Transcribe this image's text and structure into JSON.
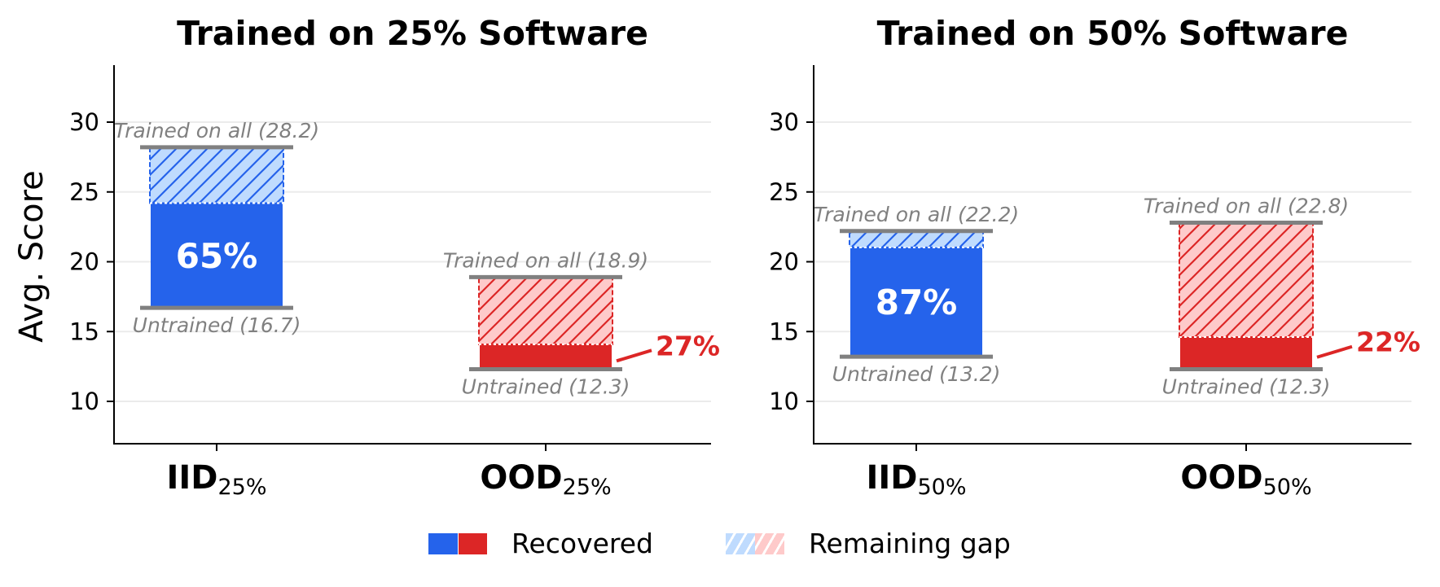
{
  "chart_data": {
    "type": "bar",
    "subtype": "stacked floating bar (recovered vs remaining gap)",
    "ylabel": "Avg. Score",
    "ylim": [
      7,
      34
    ],
    "yticks": [
      10,
      15,
      20,
      25,
      30
    ],
    "grid": "horizontal",
    "legend": {
      "position": "bottom-center",
      "entries": [
        {
          "label": "Recovered",
          "style": "solid",
          "colors": [
            "#2563EB",
            "#DC2626"
          ]
        },
        {
          "label": "Remaining gap",
          "style": "hatched",
          "colors": [
            "#BFDBFE",
            "#FECACA"
          ]
        }
      ]
    },
    "colors": {
      "iid_solid": "#2563EB",
      "iid_light": "#BFDBFE",
      "ood_solid": "#DC2626",
      "ood_light": "#FECACA",
      "cap": "#808080",
      "annotation": "#808080",
      "grid": "#EBEBEB"
    },
    "panels": [
      {
        "title": "Trained on 25% Software",
        "bars": [
          {
            "category": "IID",
            "subscript": "25%",
            "group": "iid",
            "untrained": 16.7,
            "trained_on_all": 28.2,
            "recovered_to": 24.2,
            "recovered_pct": 65,
            "pct_label": "65%",
            "pct_position": "inside",
            "untrained_label": "Untrained (16.7)",
            "trained_label": "Trained on all (28.2)"
          },
          {
            "category": "OOD",
            "subscript": "25%",
            "group": "ood",
            "untrained": 12.3,
            "trained_on_all": 18.9,
            "recovered_to": 14.08,
            "recovered_pct": 27,
            "pct_label": "27%",
            "pct_position": "outside",
            "untrained_label": "Untrained (12.3)",
            "trained_label": "Trained on all (18.9)"
          }
        ]
      },
      {
        "title": "Trained on 50% Software",
        "bars": [
          {
            "category": "IID",
            "subscript": "50%",
            "group": "iid",
            "untrained": 13.2,
            "trained_on_all": 22.2,
            "recovered_to": 21.03,
            "recovered_pct": 87,
            "pct_label": "87%",
            "pct_position": "inside",
            "untrained_label": "Untrained (13.2)",
            "trained_label": "Trained on all (22.2)"
          },
          {
            "category": "OOD",
            "subscript": "50%",
            "group": "ood",
            "untrained": 12.3,
            "trained_on_all": 22.8,
            "recovered_to": 14.61,
            "recovered_pct": 22,
            "pct_label": "22%",
            "pct_position": "outside",
            "untrained_label": "Untrained (12.3)",
            "trained_label": "Trained on all (22.8)"
          }
        ]
      }
    ]
  },
  "legend": {
    "recovered_label": "Recovered",
    "remaining_label": "Remaining gap"
  }
}
